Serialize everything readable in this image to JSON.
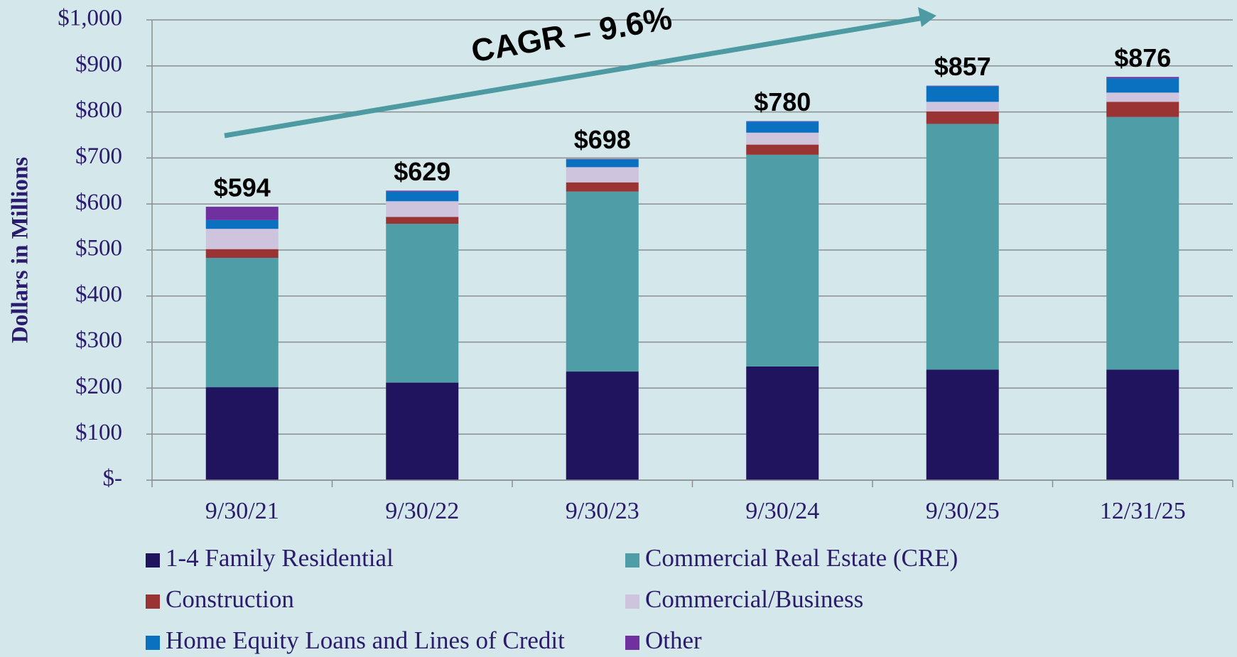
{
  "chart_data": {
    "type": "bar",
    "stacked": true,
    "ylabel": "Dollars in Millions",
    "annotation": "CAGR – 9.6%",
    "categories": [
      "9/30/21",
      "9/30/22",
      "9/30/23",
      "9/30/24",
      "9/30/25",
      "12/31/25"
    ],
    "series": [
      {
        "name": "1-4 Family Residential",
        "color": "#21145f",
        "values": [
          202,
          212,
          236,
          247,
          240,
          240
        ]
      },
      {
        "name": "Commercial Real Estate (CRE)",
        "color": "#4f9ea7",
        "values": [
          281,
          345,
          391,
          460,
          534,
          549
        ]
      },
      {
        "name": "Construction",
        "color": "#9a3434",
        "values": [
          19,
          15,
          20,
          22,
          27,
          33
        ]
      },
      {
        "name": "Commercial/Business",
        "color": "#cfc4dd",
        "values": [
          44,
          34,
          33,
          26,
          21,
          20
        ]
      },
      {
        "name": "Home Equity Loans and Lines of Credit",
        "color": "#0a70c0",
        "values": [
          19,
          21,
          17,
          24,
          34,
          31
        ]
      },
      {
        "name": "Other",
        "color": "#7030a0",
        "values": [
          29,
          2,
          1,
          1,
          1,
          3
        ]
      }
    ],
    "totals": [
      594,
      629,
      698,
      780,
      857,
      876
    ],
    "total_labels": [
      "$594",
      "$629",
      "$698",
      "$780",
      "$857",
      "$876"
    ],
    "ylim": [
      0,
      1000
    ],
    "yticks": [
      {
        "value": 0,
        "label": "$-"
      },
      {
        "value": 100,
        "label": "$100"
      },
      {
        "value": 200,
        "label": "$200"
      },
      {
        "value": 300,
        "label": "$300"
      },
      {
        "value": 400,
        "label": "$400"
      },
      {
        "value": 500,
        "label": "$500"
      },
      {
        "value": 600,
        "label": "$600"
      },
      {
        "value": 700,
        "label": "$700"
      },
      {
        "value": 800,
        "label": "$800"
      },
      {
        "value": 900,
        "label": "$900"
      },
      {
        "value": 1000,
        "label": "$1,000"
      }
    ],
    "grid": true
  }
}
